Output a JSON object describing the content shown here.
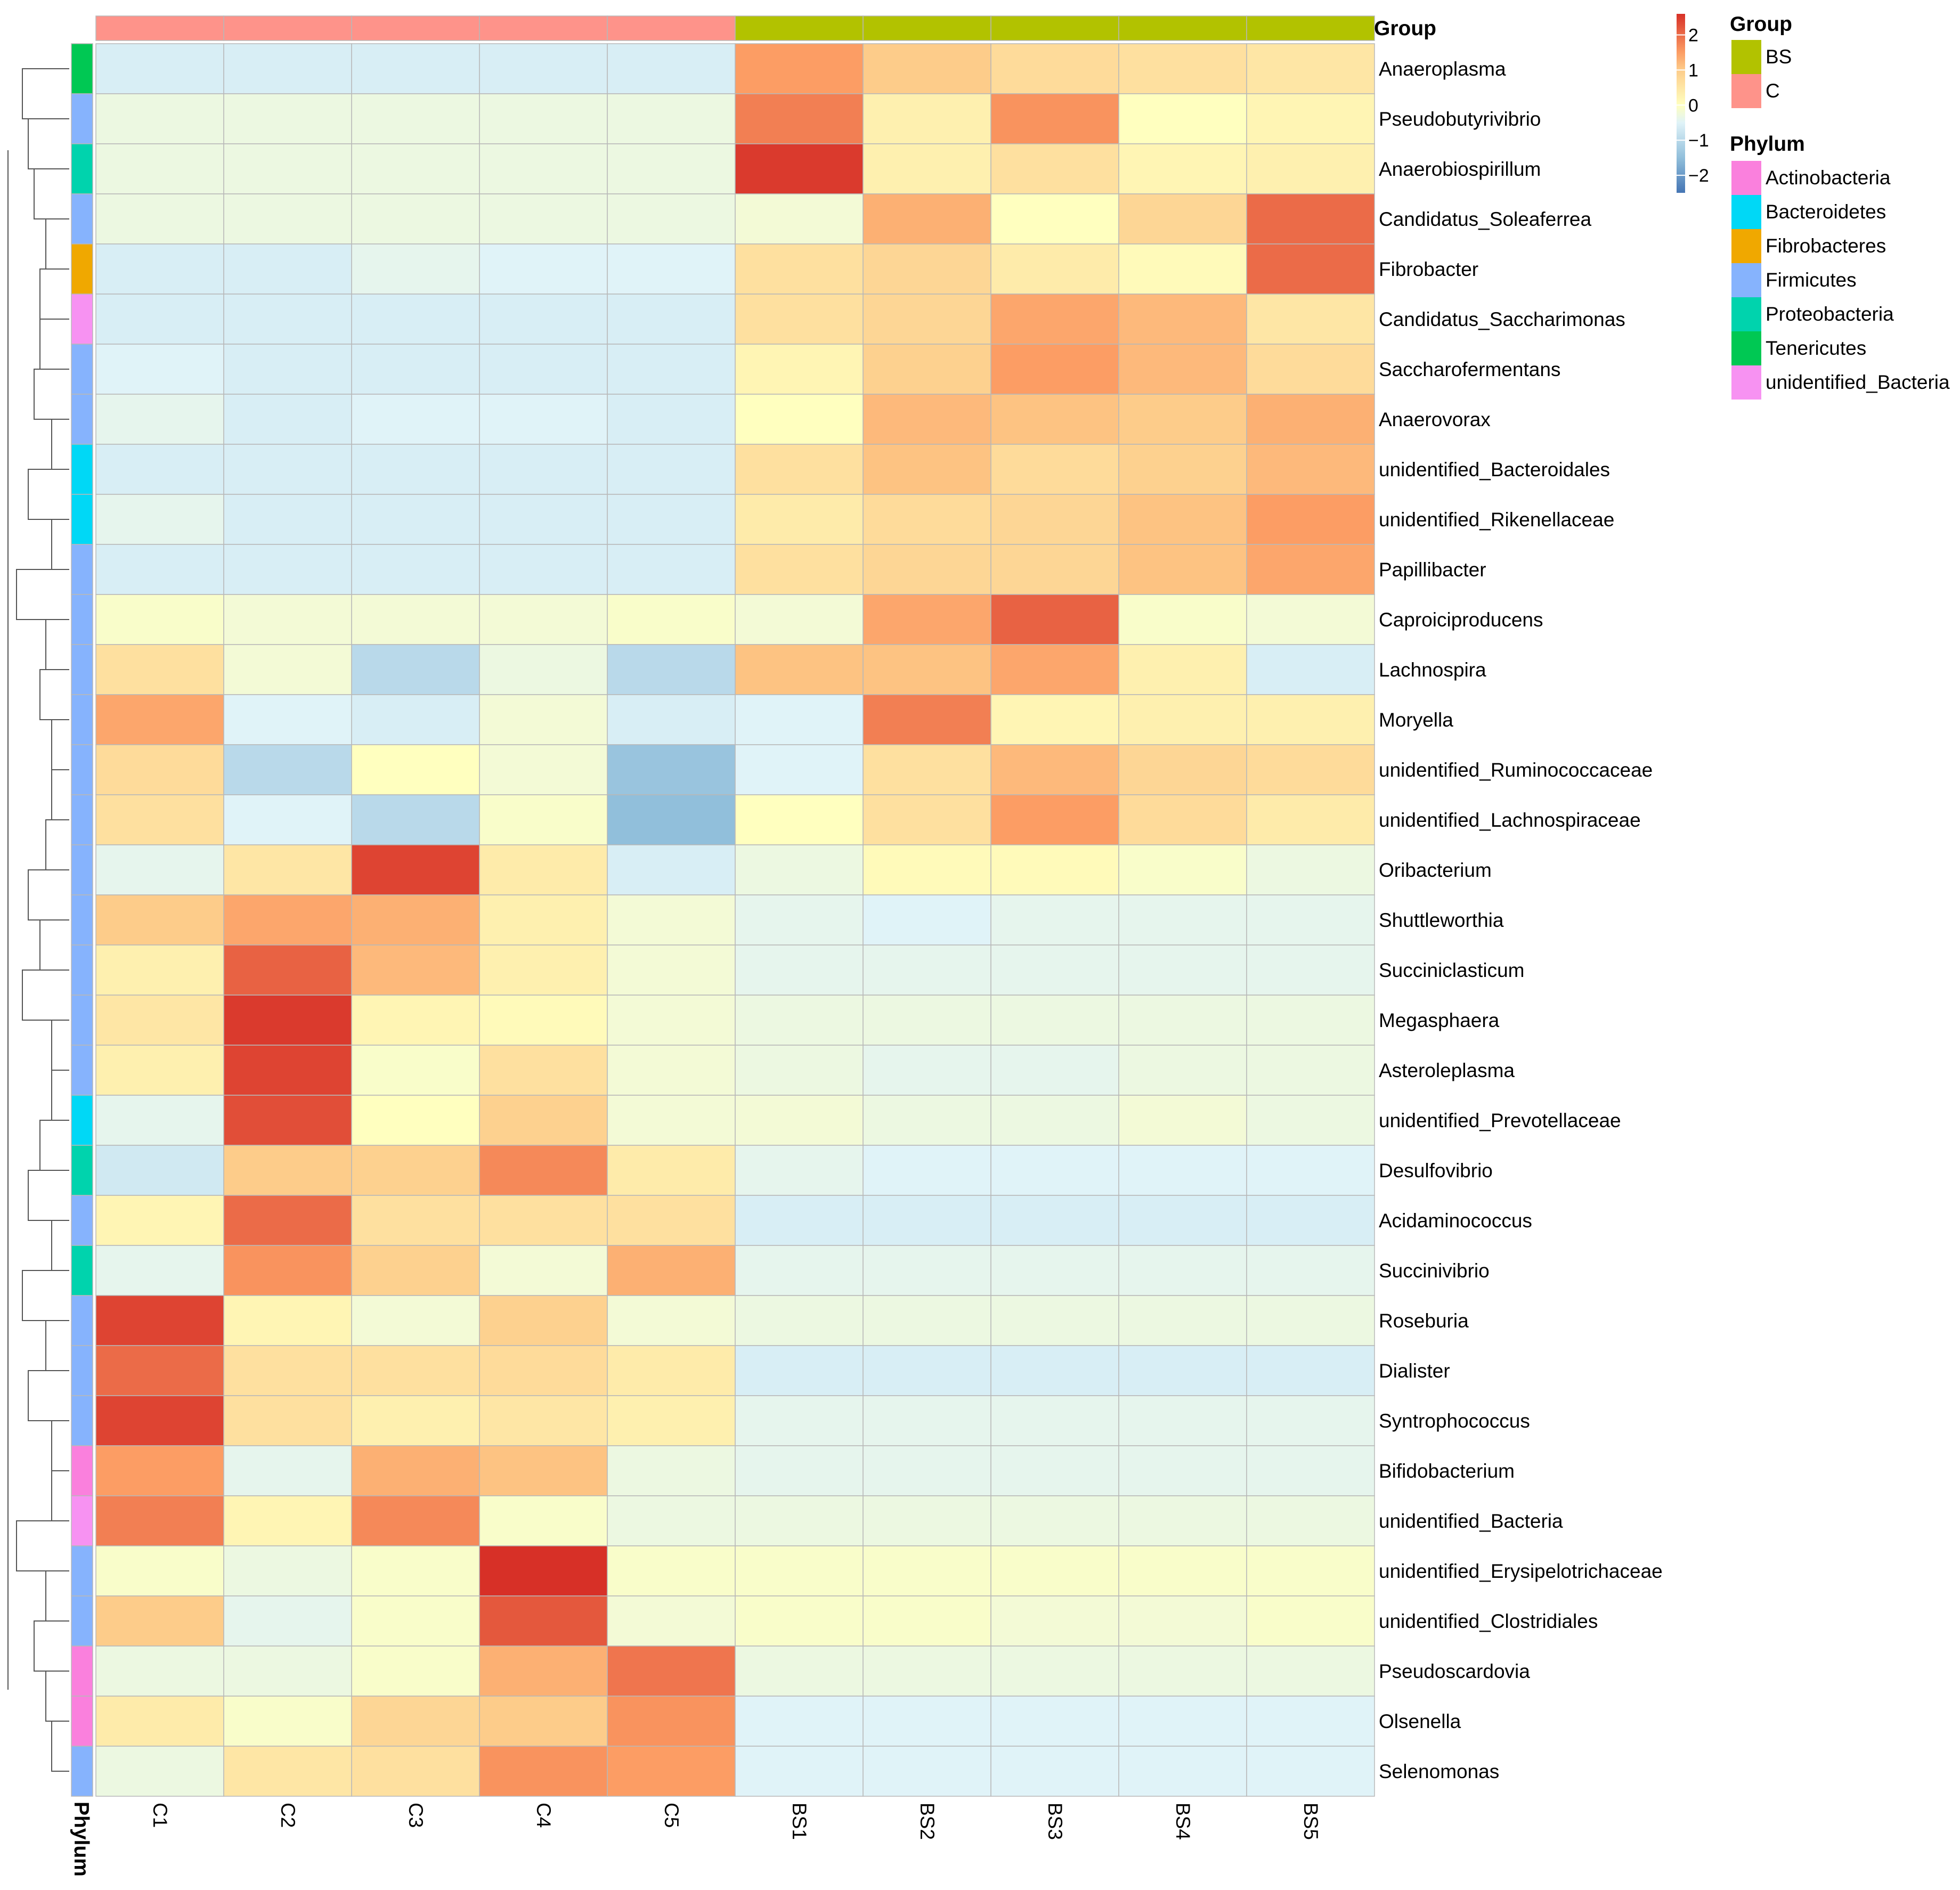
{
  "chart_data": {
    "type": "heatmap",
    "title": "",
    "columns": [
      "C1",
      "C2",
      "C3",
      "C4",
      "C5",
      "BS1",
      "BS2",
      "BS3",
      "BS4",
      "BS5"
    ],
    "column_groups": [
      "C",
      "C",
      "C",
      "C",
      "C",
      "BS",
      "BS",
      "BS",
      "BS",
      "BS"
    ],
    "rows": [
      "Anaeroplasma",
      "Pseudobutyrivibrio",
      "Anaerobiospirillum",
      "Candidatus_Soleaferrea",
      "Fibrobacter",
      "Candidatus_Saccharimonas",
      "Saccharofermentans",
      "Anaerovorax",
      "unidentified_Bacteroidales",
      "unidentified_Rikenellaceae",
      "Papillibacter",
      "Caproiciproducens",
      "Lachnospira",
      "Moryella",
      "unidentified_Ruminococcaceae",
      "unidentified_Lachnospiraceae",
      "Oribacterium",
      "Shuttleworthia",
      "Succiniclasticum",
      "Megasphaera",
      "Asteroleplasma",
      "unidentified_Prevotellaceae",
      "Desulfovibrio",
      "Acidaminococcus",
      "Succinivibrio",
      "Roseburia",
      "Dialister",
      "Syntrophococcus",
      "Bifidobacterium",
      "unidentified_Bacteria",
      "unidentified_Erysipelotrichaceae",
      "unidentified_Clostridiales",
      "Pseudoscardovia",
      "Olsenella",
      "Selenomonas"
    ],
    "row_phylum": [
      "Tenericutes",
      "Firmicutes",
      "Proteobacteria",
      "Firmicutes",
      "Fibrobacteres",
      "unidentified_Bacteria",
      "Firmicutes",
      "Firmicutes",
      "Bacteroidetes",
      "Bacteroidetes",
      "Firmicutes",
      "Firmicutes",
      "Firmicutes",
      "Firmicutes",
      "Firmicutes",
      "Firmicutes",
      "Firmicutes",
      "Firmicutes",
      "Firmicutes",
      "Firmicutes",
      "Firmicutes",
      "Bacteroidetes",
      "Proteobacteria",
      "Firmicutes",
      "Proteobacteria",
      "Firmicutes",
      "Firmicutes",
      "Firmicutes",
      "Actinobacteria",
      "unidentified_Bacteria",
      "Firmicutes",
      "Firmicutes",
      "Actinobacteria",
      "Actinobacteria",
      "Firmicutes"
    ],
    "values": [
      [
        -0.6,
        -0.6,
        -0.6,
        -0.6,
        -0.6,
        1.5,
        1.0,
        0.7,
        0.6,
        0.5
      ],
      [
        -0.3,
        -0.3,
        -0.3,
        -0.3,
        -0.3,
        1.8,
        0.3,
        1.6,
        0.0,
        0.2
      ],
      [
        -0.3,
        -0.3,
        -0.3,
        -0.3,
        -0.3,
        2.5,
        0.3,
        0.6,
        0.2,
        0.3
      ],
      [
        -0.3,
        -0.3,
        -0.3,
        -0.3,
        -0.3,
        -0.2,
        1.3,
        0.0,
        0.8,
        2.0
      ],
      [
        -0.6,
        -0.6,
        -0.4,
        -0.5,
        -0.5,
        0.6,
        0.8,
        0.4,
        0.1,
        2.0
      ],
      [
        -0.6,
        -0.6,
        -0.6,
        -0.6,
        -0.6,
        0.6,
        0.8,
        1.4,
        1.2,
        0.5
      ],
      [
        -0.5,
        -0.6,
        -0.6,
        -0.6,
        -0.6,
        0.2,
        0.9,
        1.5,
        1.2,
        0.7
      ],
      [
        -0.4,
        -0.6,
        -0.5,
        -0.5,
        -0.6,
        0.0,
        1.2,
        1.1,
        1.0,
        1.3
      ],
      [
        -0.6,
        -0.6,
        -0.6,
        -0.6,
        -0.6,
        0.6,
        1.1,
        0.7,
        0.9,
        1.2
      ],
      [
        -0.4,
        -0.6,
        -0.6,
        -0.6,
        -0.6,
        0.4,
        0.7,
        0.8,
        1.1,
        1.5
      ],
      [
        -0.6,
        -0.6,
        -0.6,
        -0.6,
        -0.6,
        0.6,
        0.8,
        0.8,
        1.1,
        1.4
      ],
      [
        -0.1,
        -0.2,
        -0.2,
        -0.2,
        -0.1,
        -0.2,
        1.4,
        2.1,
        -0.1,
        -0.2
      ],
      [
        0.6,
        -0.2,
        -1.0,
        -0.3,
        -1.0,
        1.1,
        1.1,
        1.4,
        0.3,
        -0.6
      ],
      [
        1.4,
        -0.5,
        -0.6,
        -0.2,
        -0.6,
        -0.5,
        1.8,
        0.2,
        0.3,
        0.3
      ],
      [
        0.7,
        -1.0,
        0.0,
        -0.2,
        -1.4,
        -0.5,
        0.6,
        1.2,
        0.8,
        0.7
      ],
      [
        0.6,
        -0.5,
        -1.0,
        -0.1,
        -1.5,
        0.0,
        0.6,
        1.5,
        0.7,
        0.4
      ],
      [
        -0.4,
        0.5,
        2.4,
        0.4,
        -0.6,
        -0.3,
        0.1,
        0.1,
        -0.1,
        -0.3
      ],
      [
        1.0,
        1.4,
        1.3,
        0.3,
        -0.2,
        -0.4,
        -0.5,
        -0.4,
        -0.4,
        -0.4
      ],
      [
        0.3,
        2.1,
        1.2,
        0.3,
        -0.2,
        -0.4,
        -0.4,
        -0.4,
        -0.4,
        -0.4
      ],
      [
        0.5,
        2.5,
        0.2,
        0.1,
        -0.2,
        -0.3,
        -0.3,
        -0.3,
        -0.3,
        -0.3
      ],
      [
        0.3,
        2.4,
        -0.1,
        0.6,
        -0.2,
        -0.3,
        -0.4,
        -0.4,
        -0.3,
        -0.3
      ],
      [
        -0.4,
        2.3,
        0.0,
        0.9,
        -0.2,
        -0.2,
        -0.3,
        -0.3,
        -0.2,
        -0.3
      ],
      [
        -0.7,
        1.0,
        0.9,
        1.7,
        0.4,
        -0.4,
        -0.5,
        -0.5,
        -0.5,
        -0.5
      ],
      [
        0.2,
        2.0,
        0.6,
        0.6,
        0.6,
        -0.6,
        -0.6,
        -0.6,
        -0.6,
        -0.6
      ],
      [
        -0.4,
        1.6,
        0.9,
        -0.2,
        1.3,
        -0.4,
        -0.4,
        -0.4,
        -0.4,
        -0.4
      ],
      [
        2.4,
        0.2,
        -0.2,
        0.9,
        -0.2,
        -0.3,
        -0.3,
        -0.3,
        -0.3,
        -0.3
      ],
      [
        2.0,
        0.6,
        0.6,
        0.7,
        0.4,
        -0.6,
        -0.6,
        -0.6,
        -0.6,
        -0.6
      ],
      [
        2.4,
        0.6,
        0.3,
        0.5,
        0.3,
        -0.4,
        -0.4,
        -0.4,
        -0.4,
        -0.4
      ],
      [
        1.5,
        -0.4,
        1.3,
        1.1,
        -0.3,
        -0.4,
        -0.4,
        -0.4,
        -0.4,
        -0.4
      ],
      [
        1.8,
        0.2,
        1.7,
        -0.1,
        -0.3,
        -0.3,
        -0.3,
        -0.3,
        -0.3,
        -0.3
      ],
      [
        -0.1,
        -0.3,
        -0.1,
        2.6,
        -0.1,
        -0.1,
        -0.1,
        -0.1,
        -0.1,
        -0.1
      ],
      [
        1.0,
        -0.4,
        -0.1,
        2.2,
        -0.2,
        -0.1,
        -0.1,
        -0.2,
        -0.2,
        -0.1
      ],
      [
        -0.3,
        -0.3,
        -0.1,
        1.3,
        1.9,
        -0.3,
        -0.3,
        -0.3,
        -0.3,
        -0.3
      ],
      [
        0.4,
        -0.1,
        0.8,
        1.0,
        1.6,
        -0.5,
        -0.5,
        -0.5,
        -0.5,
        -0.5
      ],
      [
        -0.3,
        0.5,
        0.6,
        1.6,
        1.5,
        -0.5,
        -0.5,
        -0.5,
        -0.5,
        -0.5
      ]
    ],
    "color_scale": {
      "stops": [
        {
          "value": -2.5,
          "color": "#4575b4"
        },
        {
          "value": -1.5,
          "color": "#91bfdb"
        },
        {
          "value": -0.5,
          "color": "#e0f3f8"
        },
        {
          "value": 0,
          "color": "#ffffbf"
        },
        {
          "value": 1,
          "color": "#fdcc8a"
        },
        {
          "value": 1.5,
          "color": "#fc9d64"
        },
        {
          "value": 2.6,
          "color": "#d73027"
        }
      ],
      "min": -2.5,
      "max": 2.6,
      "ticks": [
        {
          "value": 2,
          "label": "2"
        },
        {
          "value": 1,
          "label": "1"
        },
        {
          "value": 0,
          "label": "0"
        },
        {
          "value": -1,
          "label": "−1"
        },
        {
          "value": -2,
          "label": "−2"
        }
      ]
    },
    "group_colors": {
      "BS": "#b2c200",
      "C": "#fe938a"
    },
    "phylum_colors": {
      "Actinobacteria": "#fa80dd",
      "Bacteroidetes": "#00d8f6",
      "Fibrobacteres": "#f0a800",
      "Firmicutes": "#86b3fd",
      "Proteobacteria": "#00d3ad",
      "Tenericutes": "#00c853",
      "unidentified_Bacteria": "#f792f2"
    },
    "annotation_row_label": "Group",
    "annotation_col_label": "Phylum",
    "legend": {
      "group_title": "Group",
      "group_items": [
        {
          "label": "BS",
          "color": "#b2c200"
        },
        {
          "label": "C",
          "color": "#fe938a"
        }
      ],
      "phylum_title": "Phylum",
      "phylum_items": [
        {
          "label": "Actinobacteria",
          "color": "#fa80dd"
        },
        {
          "label": "Bacteroidetes",
          "color": "#00d8f6"
        },
        {
          "label": "Fibrobacteres",
          "color": "#f0a800"
        },
        {
          "label": "Firmicutes",
          "color": "#86b3fd"
        },
        {
          "label": "Proteobacteria",
          "color": "#00d3ad"
        },
        {
          "label": "Tenericutes",
          "color": "#00c853"
        },
        {
          "label": "unidentified_Bacteria",
          "color": "#f792f2"
        }
      ]
    },
    "dendrogram": "row"
  }
}
